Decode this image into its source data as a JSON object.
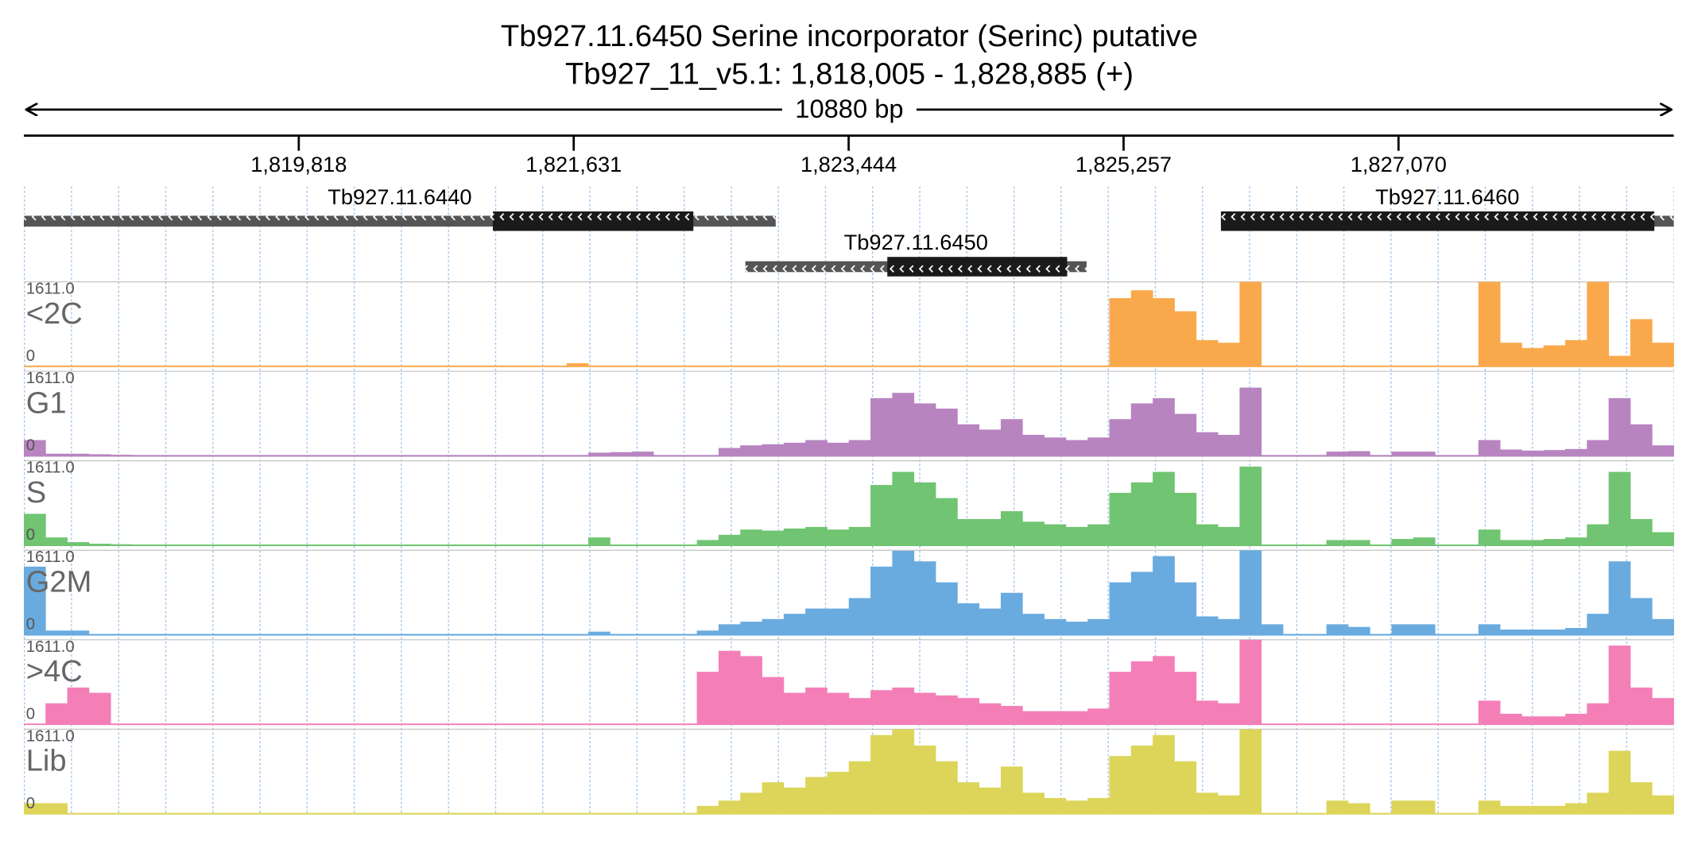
{
  "title": "Tb927.11.6450  Serine incorporator (Serinc)  putative",
  "subtitle": "Tb927_11_v5.1: 1,818,005 - 1,828,885 (+)",
  "span_label": "10880 bp",
  "xlim": [
    1818005,
    1828885
  ],
  "xticks": [
    {
      "value": 1819818,
      "label": "1,819,818"
    },
    {
      "value": 1821631,
      "label": "1,821,631"
    },
    {
      "value": 1823444,
      "label": "1,823,444"
    },
    {
      "value": 1825257,
      "label": "1,825,257"
    },
    {
      "value": 1827070,
      "label": "1,827,070"
    }
  ],
  "genes": [
    {
      "name": "Tb927.11.6440",
      "start": 1818005,
      "end": 1822963,
      "cds_start": 1821098,
      "cds_end": 1822420
    },
    {
      "name": "Tb927.11.6450",
      "start": 1822763,
      "end": 1825013,
      "cds_start": 1823699,
      "cds_end": 1824885
    },
    {
      "name": "Tb927.11.6460",
      "start": 1825899,
      "end": 1828885,
      "cds_start": 1825899,
      "cds_end": 1828757
    }
  ],
  "tracks": [
    {
      "name": "<2C",
      "color": "#f9a94b",
      "ymax": {
        "value": 1611,
        "label": "1611.0"
      },
      "ymin": 0,
      "values": [
        0,
        0,
        0,
        0,
        0,
        0,
        0,
        0,
        0,
        0,
        0,
        0,
        0,
        0,
        0,
        0,
        0,
        0,
        0,
        0,
        0,
        0,
        0,
        0,
        0,
        60,
        0,
        0,
        0,
        0,
        0,
        0,
        0,
        0,
        0,
        0,
        0,
        0,
        0,
        0,
        0,
        0,
        0,
        0,
        0,
        0,
        0,
        0,
        0,
        0,
        1300,
        1450,
        1300,
        1050,
        500,
        450,
        1611,
        0,
        0,
        0,
        0,
        0,
        0,
        0,
        0,
        0,
        0,
        1611,
        450,
        350,
        400,
        500,
        1611,
        200,
        900,
        450
      ]
    },
    {
      "name": "G1",
      "color": "#b784c0",
      "ymax": {
        "value": 1611,
        "label": "1611.0"
      },
      "ymin": 0,
      "values": [
        300,
        40,
        40,
        30,
        20,
        10,
        10,
        10,
        10,
        10,
        10,
        10,
        0,
        0,
        0,
        0,
        0,
        0,
        0,
        0,
        0,
        0,
        0,
        0,
        0,
        0,
        60,
        70,
        80,
        0,
        0,
        0,
        150,
        200,
        220,
        250,
        300,
        250,
        300,
        1100,
        1200,
        1000,
        900,
        600,
        500,
        700,
        400,
        350,
        300,
        350,
        700,
        1000,
        1100,
        800,
        450,
        400,
        1300,
        0,
        0,
        0,
        80,
        90,
        0,
        80,
        80,
        0,
        0,
        300,
        120,
        100,
        110,
        130,
        300,
        1100,
        600,
        200
      ]
    },
    {
      "name": "S",
      "color": "#70c472",
      "ymax": {
        "value": 1611,
        "label": "1611.0"
      },
      "ymin": 0,
      "values": [
        600,
        150,
        60,
        30,
        20,
        10,
        10,
        10,
        10,
        10,
        10,
        10,
        0,
        0,
        0,
        0,
        0,
        0,
        0,
        0,
        0,
        0,
        0,
        0,
        0,
        0,
        150,
        0,
        0,
        0,
        0,
        100,
        200,
        300,
        280,
        320,
        350,
        300,
        350,
        1150,
        1400,
        1200,
        900,
        500,
        500,
        650,
        450,
        400,
        350,
        400,
        1000,
        1200,
        1400,
        1000,
        400,
        350,
        1500,
        0,
        0,
        0,
        100,
        100,
        0,
        120,
        150,
        0,
        0,
        300,
        100,
        100,
        120,
        150,
        400,
        1400,
        500,
        250
      ]
    },
    {
      "name": "G2M",
      "color": "#6aabdf",
      "ymax": {
        "value": 1611,
        "label": "1611.0"
      },
      "ymin": 0,
      "values": [
        1300,
        80,
        80,
        0,
        0,
        0,
        0,
        0,
        0,
        0,
        0,
        0,
        0,
        0,
        0,
        0,
        0,
        0,
        0,
        0,
        0,
        0,
        0,
        0,
        0,
        0,
        60,
        0,
        0,
        0,
        0,
        80,
        200,
        250,
        300,
        400,
        500,
        500,
        700,
        1300,
        1600,
        1400,
        1000,
        600,
        500,
        800,
        400,
        300,
        250,
        300,
        1000,
        1200,
        1500,
        1000,
        350,
        300,
        1611,
        200,
        0,
        0,
        200,
        150,
        0,
        200,
        200,
        0,
        0,
        200,
        100,
        100,
        100,
        130,
        400,
        1400,
        700,
        300
      ]
    },
    {
      "name": ">4C",
      "color": "#f47fb7",
      "ymax": {
        "value": 1611,
        "label": "1611.0"
      },
      "ymin": 0,
      "values": [
        0,
        400,
        700,
        600,
        0,
        0,
        0,
        0,
        0,
        0,
        0,
        0,
        0,
        0,
        0,
        0,
        0,
        0,
        0,
        0,
        0,
        0,
        0,
        0,
        0,
        0,
        0,
        0,
        0,
        0,
        0,
        1000,
        1400,
        1300,
        900,
        600,
        700,
        600,
        500,
        650,
        700,
        600,
        550,
        500,
        400,
        350,
        250,
        250,
        250,
        300,
        1000,
        1200,
        1300,
        1000,
        450,
        400,
        1611,
        0,
        0,
        0,
        0,
        0,
        0,
        0,
        0,
        0,
        0,
        450,
        200,
        150,
        150,
        200,
        400,
        1500,
        700,
        500
      ]
    },
    {
      "name": "Lib",
      "color": "#dcd55a",
      "ymax": {
        "value": 1611,
        "label": "1611.0"
      },
      "ymin": 0,
      "values": [
        200,
        200,
        0,
        0,
        0,
        0,
        0,
        0,
        0,
        0,
        0,
        0,
        0,
        0,
        0,
        0,
        0,
        0,
        0,
        0,
        0,
        0,
        0,
        0,
        0,
        0,
        0,
        0,
        0,
        0,
        0,
        150,
        250,
        400,
        600,
        500,
        700,
        800,
        1000,
        1500,
        1611,
        1300,
        1000,
        600,
        500,
        900,
        400,
        300,
        250,
        300,
        1100,
        1300,
        1500,
        1000,
        400,
        350,
        1611,
        0,
        0,
        0,
        250,
        200,
        0,
        250,
        250,
        0,
        0,
        250,
        150,
        150,
        150,
        200,
        400,
        1200,
        600,
        350
      ]
    }
  ]
}
